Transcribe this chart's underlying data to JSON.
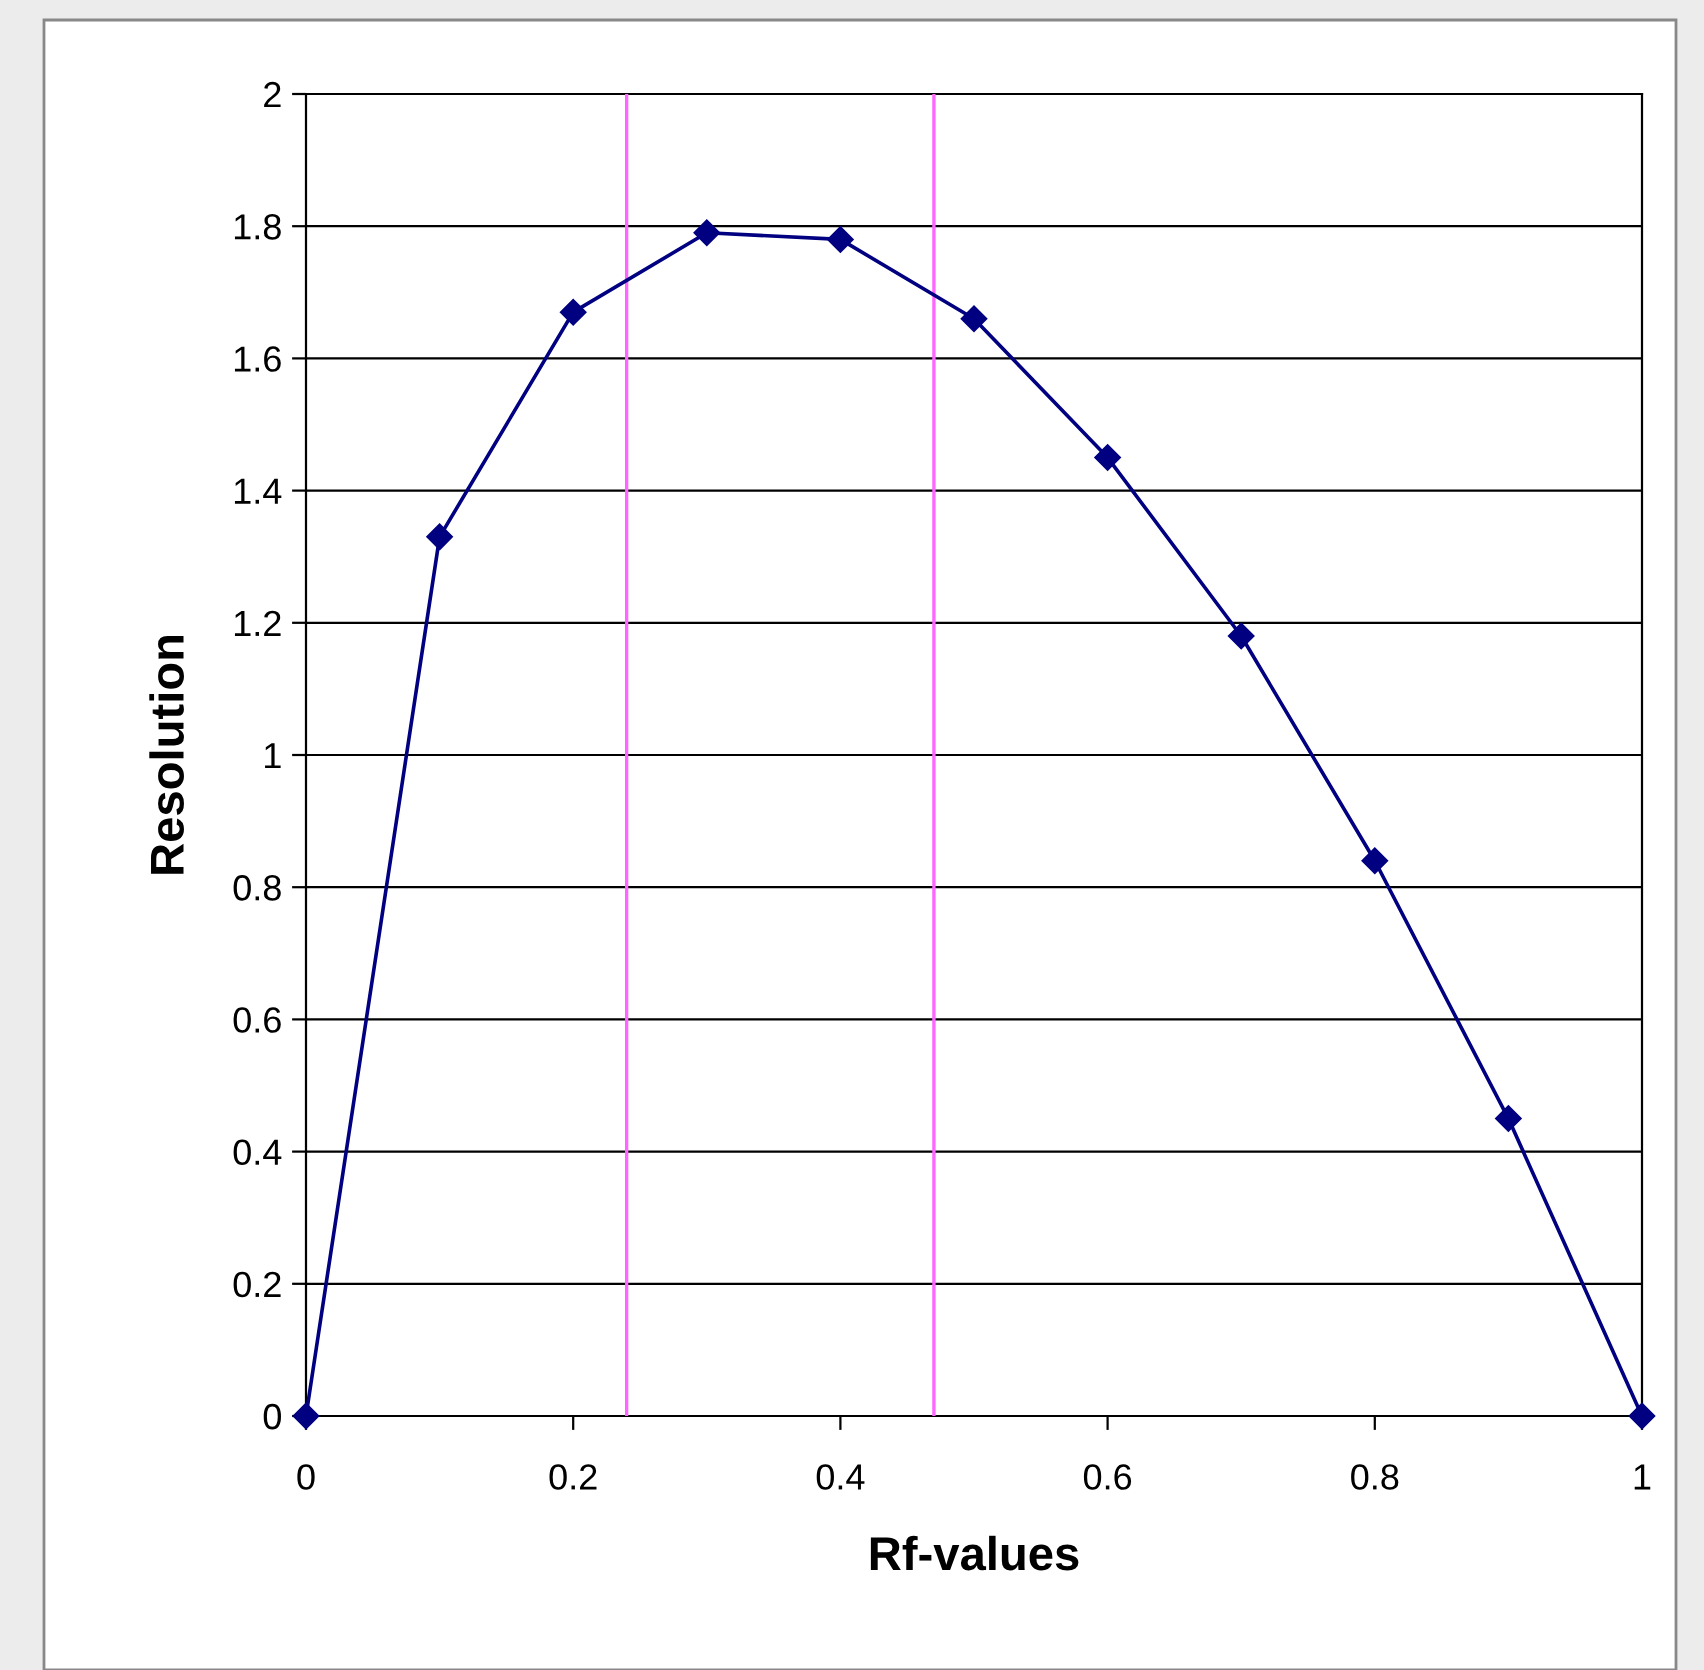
{
  "chart_data": {
    "type": "line",
    "xlabel": "Rf-values",
    "ylabel": "Resolution",
    "x": [
      0,
      0.1,
      0.2,
      0.3,
      0.4,
      0.5,
      0.6,
      0.7,
      0.8,
      0.9,
      1.0
    ],
    "series": [
      {
        "color": "#000080",
        "values": [
          0,
          1.33,
          1.67,
          1.79,
          1.78,
          1.66,
          1.45,
          1.18,
          0.84,
          0.45,
          0
        ]
      }
    ],
    "xlim": [
      0,
      1
    ],
    "xticks": [
      0,
      0.2,
      0.4,
      0.6,
      0.8,
      1
    ],
    "ylim": [
      0,
      2
    ],
    "yticks": [
      0,
      0.2,
      0.4,
      0.6,
      0.8,
      1,
      1.2,
      1.4,
      1.6,
      1.8,
      2
    ],
    "ref_lines": [
      {
        "axis": "x",
        "value": 0.24,
        "color": "#ff66ff"
      },
      {
        "axis": "x",
        "value": 0.47,
        "color": "#ff66ff"
      }
    ],
    "grid": "y",
    "marker": "diamond",
    "line_style": "solid"
  }
}
